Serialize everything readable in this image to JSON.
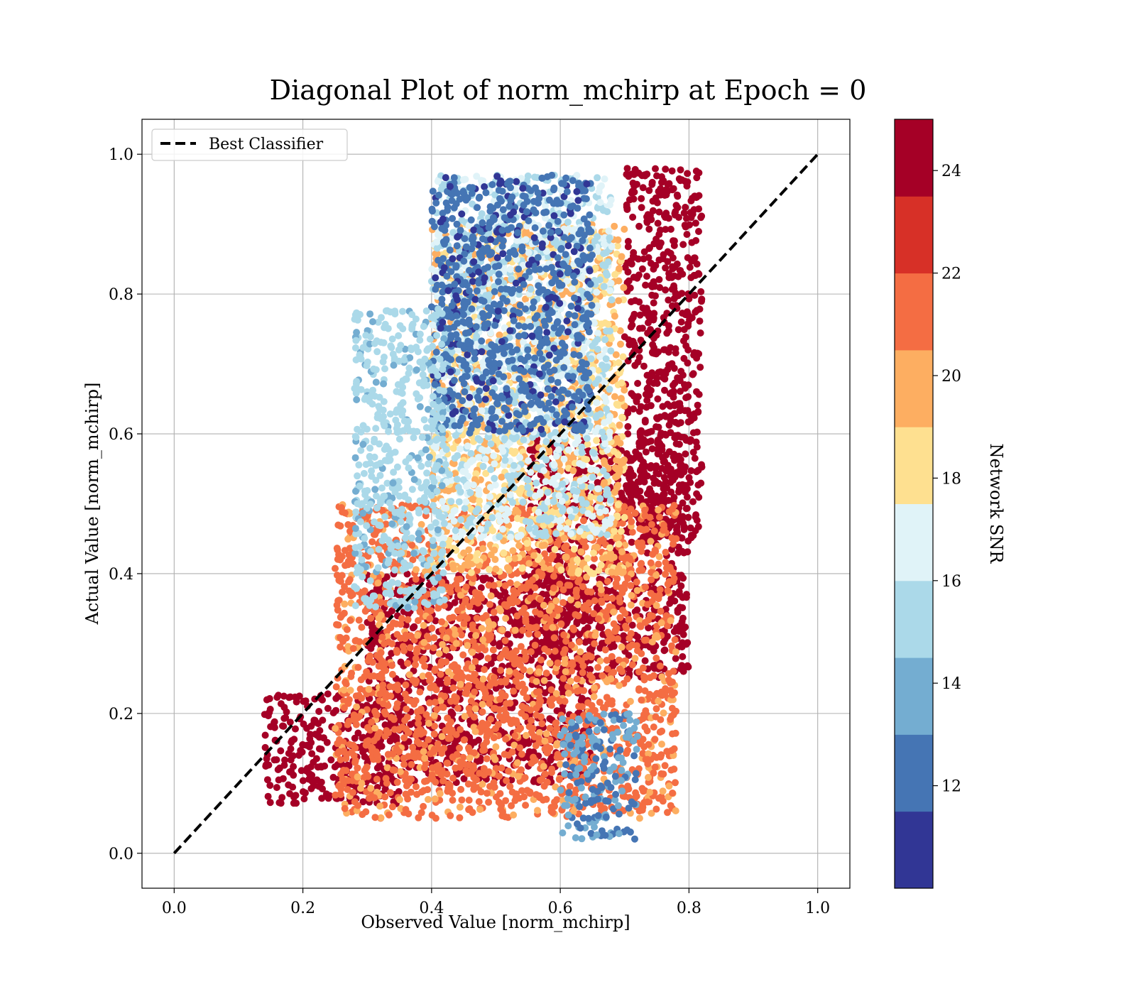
{
  "chart_data": {
    "type": "scatter",
    "title": "Diagonal Plot of norm_mchirp at Epoch = 0",
    "xlabel": "Observed Value [norm_mchirp]",
    "ylabel": "Actual Value [norm_mchirp]",
    "xlim": [
      -0.05,
      1.05
    ],
    "ylim": [
      -0.05,
      1.05
    ],
    "xticks": [
      "0.0",
      "0.2",
      "0.4",
      "0.6",
      "0.8",
      "1.0"
    ],
    "yticks": [
      "0.0",
      "0.2",
      "0.4",
      "0.6",
      "0.8",
      "1.0"
    ],
    "grid": true,
    "legend": {
      "placement": "top-left",
      "entries": [
        "Best Classifier"
      ]
    },
    "reference_line": {
      "name": "Best Classifier",
      "style": "dashed",
      "color": "#000000",
      "x": [
        0,
        1
      ],
      "y": [
        0,
        1
      ]
    },
    "colorbar": {
      "label": "Network SNR",
      "min": 10.0,
      "max": 25.0,
      "ticks": [
        "12",
        "14",
        "16",
        "18",
        "20",
        "22",
        "24"
      ],
      "bands": [
        "#313695",
        "#4575b4",
        "#74add1",
        "#abd9e9",
        "#e0f3f8",
        "#fee090",
        "#fdae61",
        "#f46d43",
        "#d73027",
        "#a50026"
      ]
    },
    "point_clusters": [
      {
        "snr_level": 24.5,
        "x_range": [
          0.7,
          0.82
        ],
        "y_range": [
          0.45,
          0.98
        ]
      },
      {
        "snr_level": 24.5,
        "x_range": [
          0.55,
          0.8
        ],
        "y_range": [
          0.25,
          0.6
        ]
      },
      {
        "snr_level": 24.5,
        "x_range": [
          0.3,
          0.65
        ],
        "y_range": [
          0.1,
          0.4
        ]
      },
      {
        "snr_level": 24.5,
        "x_range": [
          0.14,
          0.35
        ],
        "y_range": [
          0.07,
          0.23
        ]
      },
      {
        "snr_level": 21.0,
        "x_range": [
          0.25,
          0.78
        ],
        "y_range": [
          0.05,
          0.5
        ]
      },
      {
        "snr_level": 19.0,
        "x_range": [
          0.4,
          0.7
        ],
        "y_range": [
          0.4,
          0.9
        ]
      },
      {
        "snr_level": 16.0,
        "x_range": [
          0.4,
          0.68
        ],
        "y_range": [
          0.45,
          0.97
        ]
      },
      {
        "snr_level": 12.0,
        "x_range": [
          0.4,
          0.65
        ],
        "y_range": [
          0.6,
          0.97
        ]
      },
      {
        "snr_level": 13.0,
        "x_range": [
          0.6,
          0.72
        ],
        "y_range": [
          0.02,
          0.2
        ]
      },
      {
        "snr_level": 15.0,
        "x_range": [
          0.28,
          0.42
        ],
        "y_range": [
          0.35,
          0.78
        ]
      }
    ]
  }
}
